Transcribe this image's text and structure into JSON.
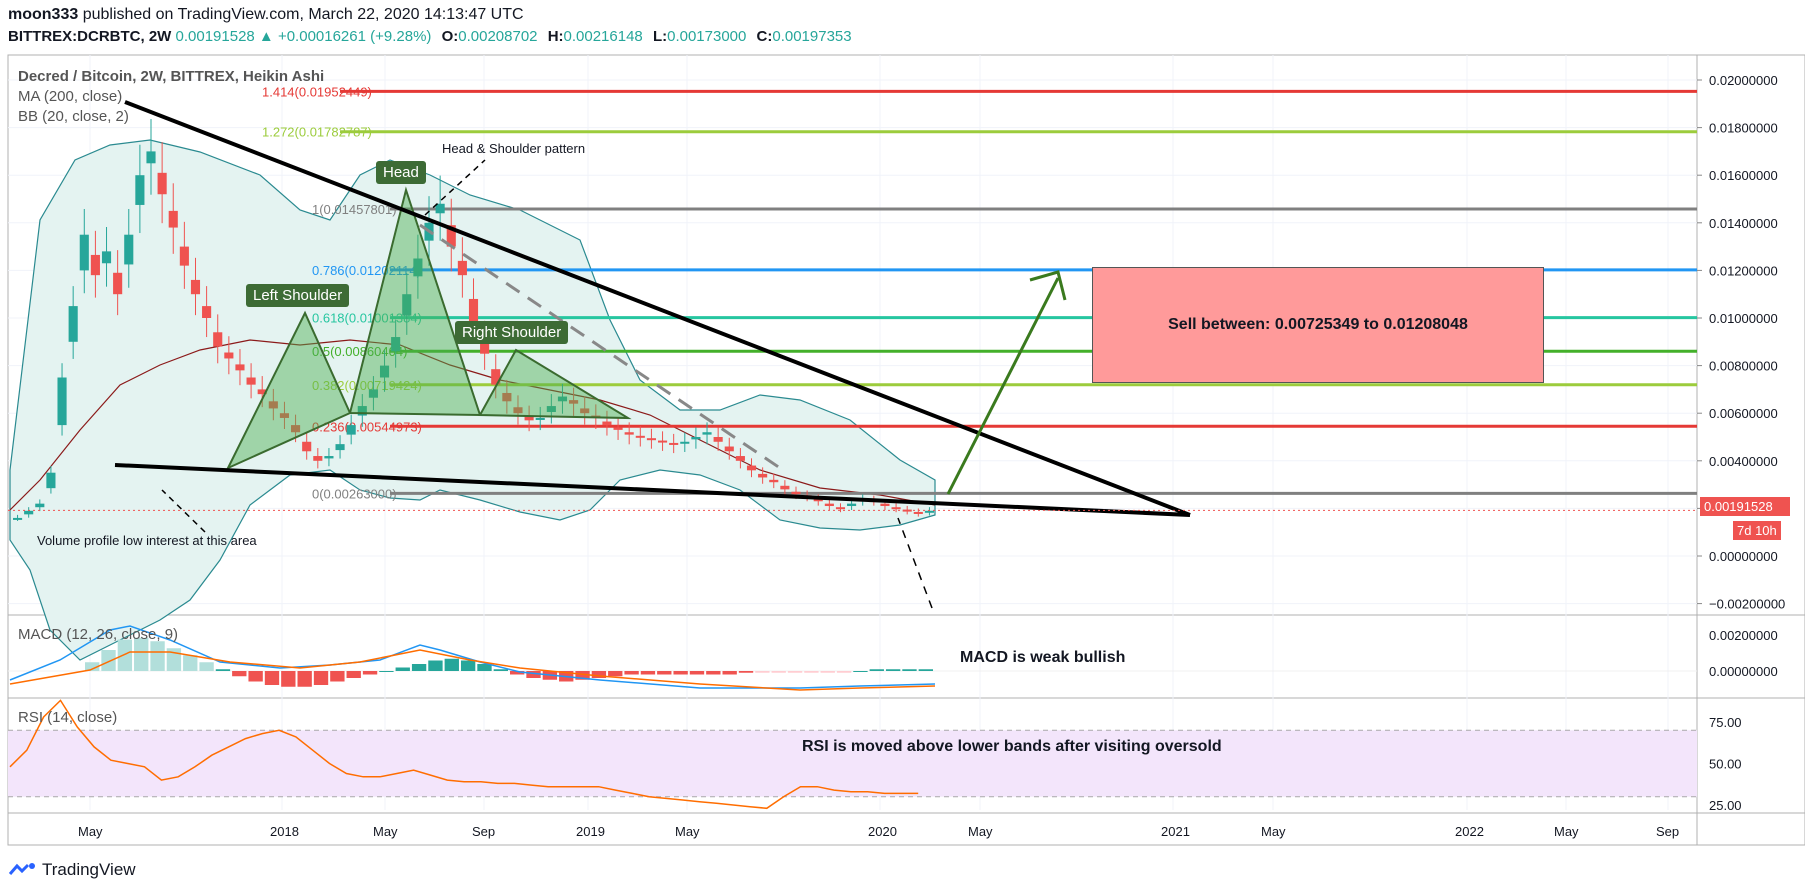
{
  "header": {
    "user": "moon333",
    "published": "published on TradingView.com, March 22, 2020 14:13:47 UTC",
    "symbol": "BITTREX:DCRBTC, 2W",
    "last": "0.00191528",
    "change_arrow": "▲",
    "change": "+0.00016261 (+9.28%)",
    "o_label": "O:",
    "o": "0.00208702",
    "h_label": "H:",
    "h": "0.00216148",
    "l_label": "L:",
    "l": "0.00173000",
    "c_label": "C:",
    "c": "0.00197353"
  },
  "legend": {
    "title": "Decred / Bitcoin, 2W, BITTREX, Heikin Ashi",
    "ma": "MA (200, close)",
    "bb": "BB (20, close, 2)",
    "macd": "MACD (12, 26, close, 9)",
    "rsi": "RSI (14, close)"
  },
  "annotations": {
    "head": "Head",
    "left_shoulder": "Left Shoulder",
    "right_shoulder": "Right Shoulder",
    "hs_pattern": "Head & Shoulder pattern",
    "volume_note": "Volume profile low interest at this area",
    "sell_box": "Sell between: 0.00725349 to 0.01208048",
    "macd_note": "MACD is weak bullish",
    "rsi_note": "RSI is moved above lower bands after visiting oversold"
  },
  "price_tag": "0.00191528",
  "time_tag": "7d 10h",
  "brand": "TradingView",
  "colors": {
    "up": "#26a69a",
    "down": "#ef5350",
    "red_line": "#e53935",
    "lime": "#9ccc3c",
    "teal": "#26c6a0",
    "green": "#43b02a",
    "blue": "#2196f3",
    "gray": "#808080",
    "rsi_band": "#f3e5fb",
    "bb_fill": "#e4f3f1",
    "ma": "#8b1a1a",
    "bb": "#2a8a90"
  },
  "chart_data": {
    "type": "candlestick",
    "title": "Decred / Bitcoin, 2W, BITTREX, Heikin Ashi",
    "y_axis_ticks": [
      "0.02000000",
      "0.01800000",
      "0.01600000",
      "0.01400000",
      "0.01200000",
      "0.01000000",
      "0.00800000",
      "0.00600000",
      "0.00400000",
      "0.00200000",
      "0.00000000",
      "−0.00200000"
    ],
    "macd_ticks": [
      "0.00200000",
      "0.00000000"
    ],
    "rsi_ticks": [
      "75.00",
      "50.00",
      "25.00"
    ],
    "x_ticks": [
      "May",
      "2018",
      "May",
      "Sep",
      "2019",
      "May",
      "2020",
      "May",
      "2021",
      "May",
      "2022",
      "May",
      "Sep"
    ],
    "fib_levels": [
      {
        "label": "1.414(0.01952449)",
        "value": 0.01952449,
        "color": "#e53935"
      },
      {
        "label": "1.272(0.01782787)",
        "value": 0.01782787,
        "color": "#9ccc3c"
      },
      {
        "label": "1(0.01457801)",
        "value": 0.01457801,
        "color": "#808080"
      },
      {
        "label": "0.786(0.01202114)",
        "value": 0.01202114,
        "color": "#2196f3"
      },
      {
        "label": "0.618(0.01001384)",
        "value": 0.01001384,
        "color": "#26c6a0"
      },
      {
        "label": "0.5(0.00860404)",
        "value": 0.00860404,
        "color": "#43b02a"
      },
      {
        "label": "0.382(0.00719424)",
        "value": 0.00719424,
        "color": "#9ccc3c"
      },
      {
        "label": "0.236(0.00544973)",
        "value": 0.00544973,
        "color": "#e53935"
      },
      {
        "label": "0(0.00263000)",
        "value": 0.00263,
        "color": "#808080"
      }
    ],
    "closes": [
      0.0016,
      0.0019,
      0.0022,
      0.0035,
      0.0075,
      0.0105,
      0.0135,
      0.0118,
      0.0128,
      0.011,
      0.0135,
      0.016,
      0.017,
      0.0152,
      0.0138,
      0.0122,
      0.011,
      0.01,
      0.0088,
      0.0083,
      0.0078,
      0.0072,
      0.0068,
      0.0062,
      0.0058,
      0.0052,
      0.0044,
      0.004,
      0.0042,
      0.0047,
      0.0055,
      0.0063,
      0.007,
      0.008,
      0.0092,
      0.011,
      0.0125,
      0.014,
      0.0148,
      0.013,
      0.0118,
      0.0098,
      0.0085,
      0.0072,
      0.0065,
      0.006,
      0.0057,
      0.0058,
      0.0063,
      0.0067,
      0.0064,
      0.006,
      0.0058,
      0.0055,
      0.0053,
      0.0051,
      0.005,
      0.0049,
      0.0048,
      0.0047,
      0.0048,
      0.005,
      0.0052,
      0.0048,
      0.0044,
      0.004,
      0.0036,
      0.0033,
      0.0031,
      0.0028,
      0.0026,
      0.0025,
      0.0023,
      0.0021,
      0.002,
      0.0022,
      0.0024,
      0.0023,
      0.0021,
      0.002,
      0.0019,
      0.0018,
      0.0019
    ],
    "macd_hist": [
      0.0005,
      0.0012,
      0.0018,
      0.0019,
      0.0017,
      0.0013,
      0.0009,
      0.0005,
      0.0001,
      -0.0003,
      -0.0006,
      -0.0008,
      -0.0009,
      -0.0009,
      -0.0008,
      -0.0006,
      -0.0004,
      -0.0002,
      0.0,
      0.0002,
      0.0004,
      0.0006,
      0.0007,
      0.0006,
      0.0004,
      0.0001,
      -0.0002,
      -0.0004,
      -0.0005,
      -0.0006,
      -0.0005,
      -0.0004,
      -0.0003,
      -0.0002,
      -0.0002,
      -0.0002,
      -0.0002,
      -0.0002,
      -0.0002,
      -0.0002,
      -0.0001,
      -0.0001,
      -0.0001,
      -0.0001,
      -0.0001,
      -0.0001,
      -0.0001,
      0.0,
      0.0001,
      0.0001,
      0.0001,
      0.0001
    ],
    "rsi": [
      48,
      58,
      78,
      88,
      72,
      60,
      52,
      50,
      48,
      40,
      42,
      48,
      55,
      60,
      65,
      68,
      70,
      66,
      58,
      50,
      44,
      42,
      42,
      44,
      46,
      43,
      40,
      39,
      39,
      38,
      38,
      37,
      36,
      36,
      36,
      36,
      34,
      32,
      30,
      29,
      28,
      27,
      26,
      25,
      24,
      23,
      30,
      36,
      36,
      34,
      33,
      33,
      32,
      32,
      32
    ]
  }
}
